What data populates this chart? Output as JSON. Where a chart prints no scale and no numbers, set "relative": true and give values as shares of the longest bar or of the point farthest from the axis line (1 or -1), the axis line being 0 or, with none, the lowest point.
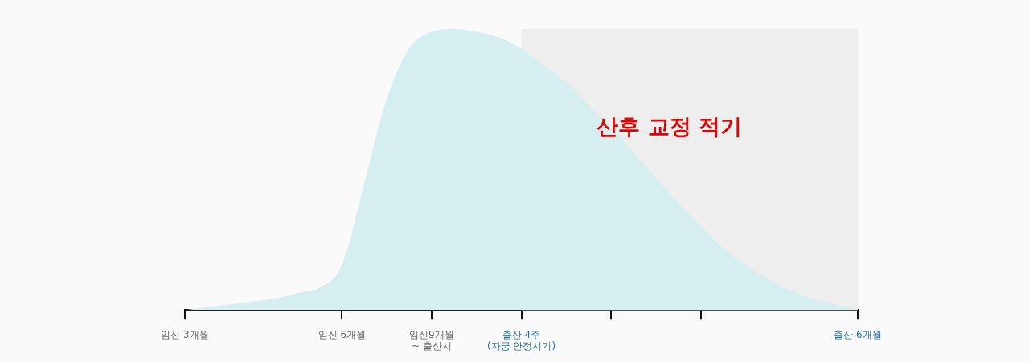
{
  "chart_data": {
    "type": "area",
    "relative": true,
    "categories": [
      "임신 3개월",
      null,
      null,
      null,
      null,
      null,
      null,
      "임신 6개월",
      null,
      null,
      null,
      "임신9개월\n~ 출산시",
      null,
      null,
      null,
      "출산 4주\n(자궁 안정시기)",
      null,
      null,
      null,
      null,
      null,
      null,
      null,
      null,
      null,
      null,
      null,
      null,
      null,
      null,
      "출산 6개월"
    ],
    "series": [
      {
        "color": "#d5eef0",
        "values": [
          0,
          0.01,
          0.02,
          0.03,
          0.04,
          0.06,
          0.08,
          0.16,
          0.45,
          0.75,
          0.93,
          0.99,
          1,
          0.99,
          0.97,
          0.93,
          0.87,
          0.81,
          0.73,
          0.65,
          0.56,
          0.47,
          0.38,
          0.3,
          0.22,
          0.16,
          0.11,
          0.07,
          0.04,
          0.02,
          0
        ]
      }
    ],
    "bands": [
      {
        "axis": "x",
        "from": "출산 4주\n(자궁 안정시기)",
        "to": "출산 6개월",
        "label": "산후 교정 적기",
        "color": "#eeeeee"
      }
    ],
    "legend": false,
    "grid": false
  }
}
